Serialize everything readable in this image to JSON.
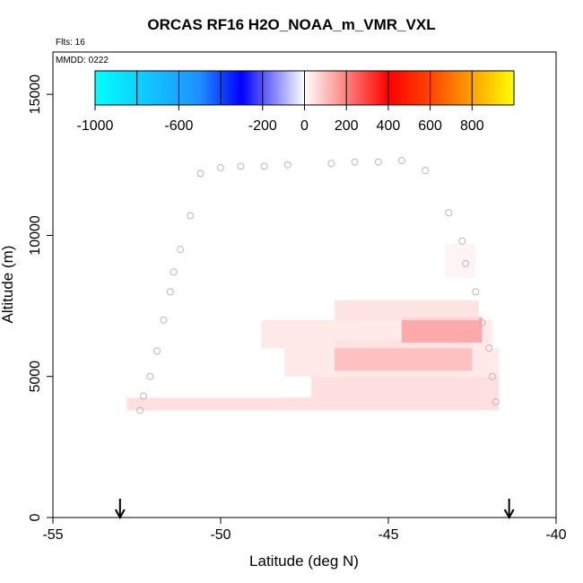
{
  "header": {
    "title": "ORCAS RF16 H2O_NOAA_m_VMR_VXL",
    "flights": "Flts: 16",
    "mmdd": "MMDD: 0222"
  },
  "chart_data": {
    "type": "heatmap",
    "title": "ORCAS RF16 H2O_NOAA_m_VMR_VXL",
    "xlabel": "Latitude (deg N)",
    "ylabel": "Altitude (m)",
    "xlim": [
      -55,
      -40
    ],
    "ylim": [
      0,
      16500
    ],
    "x_ticks": [
      -55,
      -50,
      -45,
      -40
    ],
    "x_tick_labels": [
      "-55",
      "-50",
      "-45",
      "-40"
    ],
    "y_ticks": [
      0,
      5000,
      10000,
      15000
    ],
    "y_tick_labels": [
      "0",
      "5000",
      "10000",
      "15000"
    ],
    "grid": false,
    "colorbar": {
      "range": [
        -1000,
        1000
      ],
      "tick_values": [
        -1000,
        -600,
        -200,
        0,
        200,
        400,
        600,
        800
      ],
      "tick_labels": [
        "-1000",
        "-600",
        "-200",
        "0",
        "200",
        "400",
        "600",
        "800"
      ],
      "colors": [
        "#00ffff",
        "#0000ff",
        "#ffffff",
        "#ff0000",
        "#ffff00"
      ]
    },
    "flight_track_points": [
      [
        -52.4,
        3800
      ],
      [
        -52.3,
        4300
      ],
      [
        -52.1,
        5000
      ],
      [
        -51.9,
        5900
      ],
      [
        -51.7,
        7000
      ],
      [
        -51.5,
        8000
      ],
      [
        -51.4,
        8700
      ],
      [
        -51.2,
        9500
      ],
      [
        -50.9,
        10700
      ],
      [
        -50.6,
        12200
      ],
      [
        -50.0,
        12400
      ],
      [
        -49.4,
        12450
      ],
      [
        -48.7,
        12450
      ],
      [
        -48.0,
        12500
      ],
      [
        -46.7,
        12550
      ],
      [
        -46.0,
        12600
      ],
      [
        -45.3,
        12600
      ],
      [
        -44.6,
        12650
      ],
      [
        -43.9,
        12300
      ],
      [
        -43.2,
        10800
      ],
      [
        -42.8,
        9800
      ],
      [
        -42.7,
        9000
      ],
      [
        -42.4,
        8000
      ],
      [
        -42.2,
        6900
      ],
      [
        -42.0,
        6000
      ],
      [
        -41.9,
        5000
      ],
      [
        -41.8,
        4100
      ]
    ],
    "shaded_cells": [
      {
        "x0": -52.8,
        "x1": -41.7,
        "y0": 3800,
        "y1": 4250,
        "value": 60
      },
      {
        "x0": -47.3,
        "x1": -41.7,
        "y0": 4250,
        "y1": 5000,
        "value": 60
      },
      {
        "x0": -48.1,
        "x1": -41.7,
        "y0": 5000,
        "y1": 6000,
        "value": 40
      },
      {
        "x0": -46.6,
        "x1": -42.5,
        "y0": 5200,
        "y1": 6300,
        "value": 110
      },
      {
        "x0": -48.8,
        "x1": -41.9,
        "y0": 6000,
        "y1": 7000,
        "value": 40
      },
      {
        "x0": -44.6,
        "x1": -42.2,
        "y0": 6200,
        "y1": 7100,
        "value": 150
      },
      {
        "x0": -46.6,
        "x1": -42.3,
        "y0": 7000,
        "y1": 7700,
        "value": 50
      },
      {
        "x0": -43.3,
        "x1": -42.4,
        "y0": 8500,
        "y1": 9700,
        "value": 20
      }
    ],
    "markers": [
      {
        "x": -53.0,
        "label": "arrow"
      },
      {
        "x": -41.4,
        "label": "arrow"
      }
    ]
  }
}
